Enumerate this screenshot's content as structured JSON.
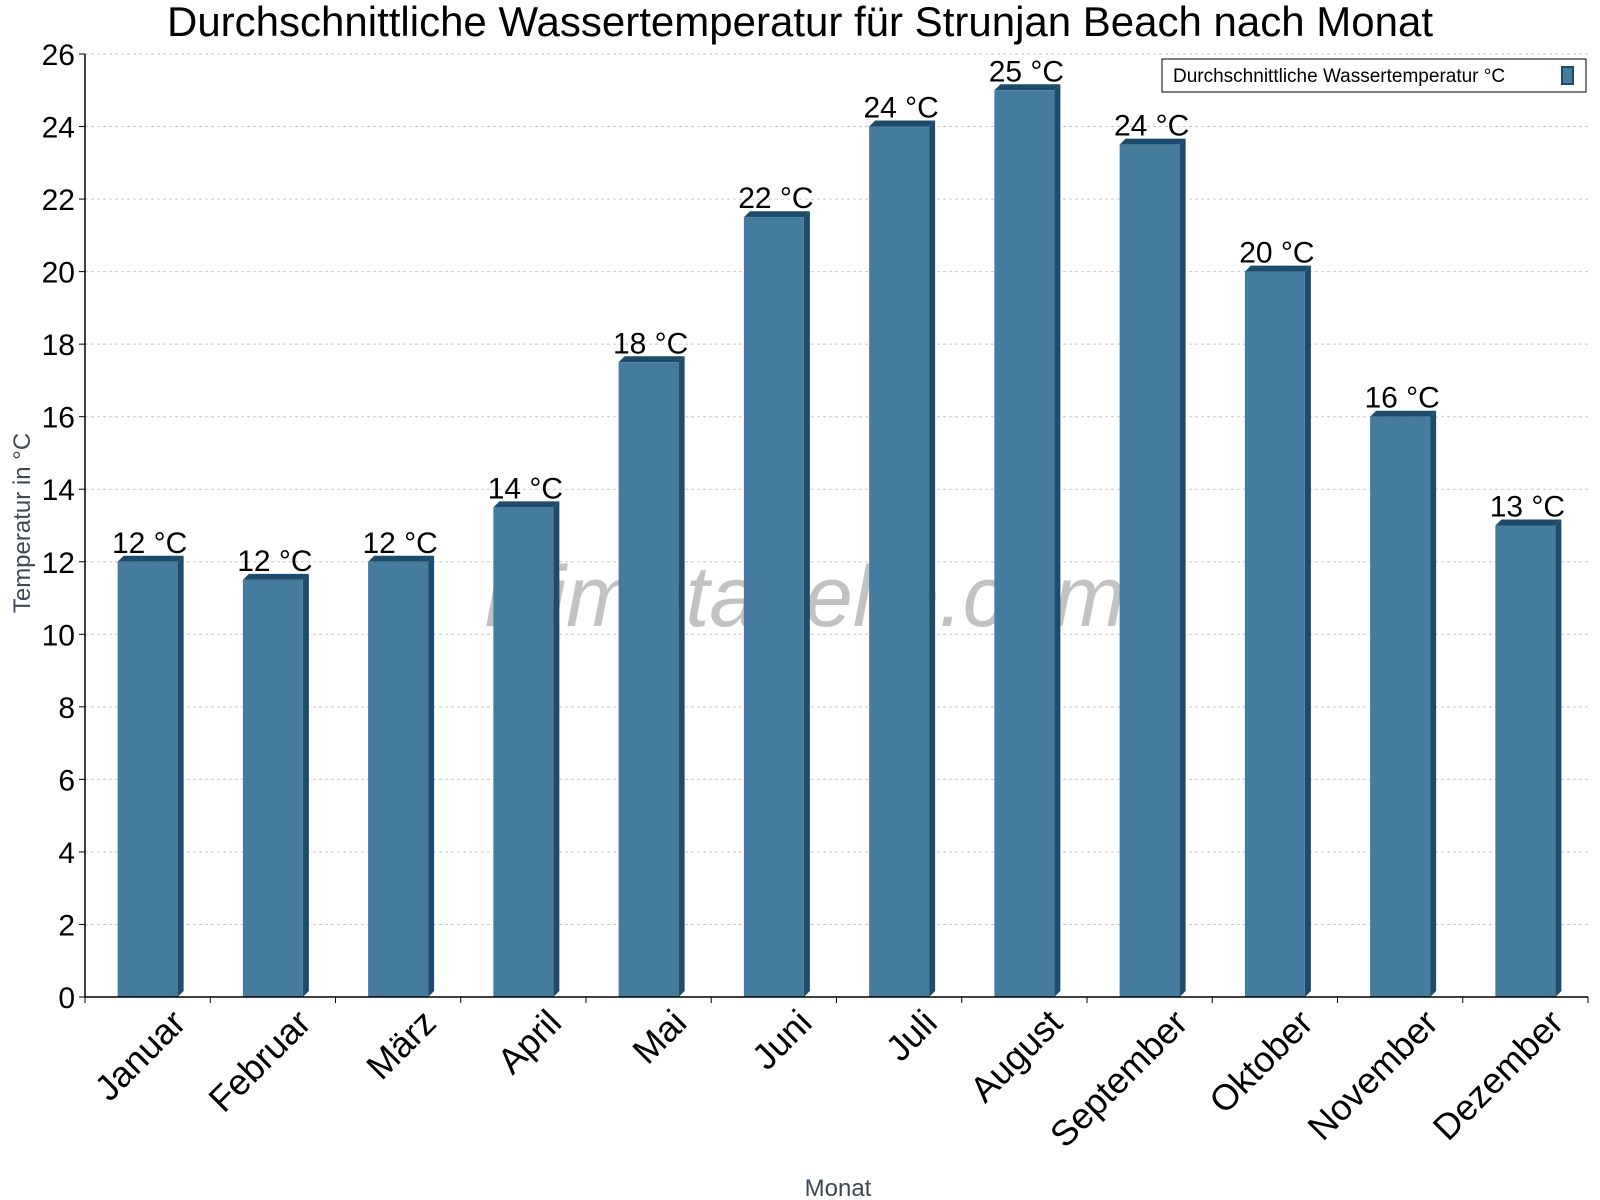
{
  "chart_data": {
    "type": "bar",
    "title": "Durchschnittliche Wassertemperatur für Strunjan Beach nach Monat",
    "xlabel": "Monat",
    "ylabel": "Temperatur in °C",
    "ylim": [
      0,
      26
    ],
    "yticks": [
      0,
      2,
      4,
      6,
      8,
      10,
      12,
      14,
      16,
      18,
      20,
      22,
      24,
      26
    ],
    "grid": true,
    "legend_position": "top-right",
    "categories": [
      "Januar",
      "Februar",
      "März",
      "April",
      "Mai",
      "Juni",
      "Juli",
      "August",
      "September",
      "Oktober",
      "November",
      "Dezember"
    ],
    "series": [
      {
        "name": "Durchschnittliche Wassertemperatur °C",
        "values": [
          12.0,
          11.5,
          12.0,
          13.5,
          17.5,
          21.5,
          24.0,
          25.0,
          23.5,
          20.0,
          16.0,
          13.0
        ],
        "labels": [
          "12 °C",
          "12 °C",
          "12 °C",
          "14 °C",
          "18 °C",
          "22 °C",
          "24 °C",
          "25 °C",
          "24 °C",
          "20 °C",
          "16 °C",
          "13 °C"
        ]
      }
    ],
    "colors": {
      "bar_front": "#457b9d",
      "bar_side": "#1d4b6b",
      "bar_top": "#1d4b6b",
      "grid": "#c8c8c8",
      "axis": "#000000"
    }
  },
  "watermark": "klimatabelle.com"
}
